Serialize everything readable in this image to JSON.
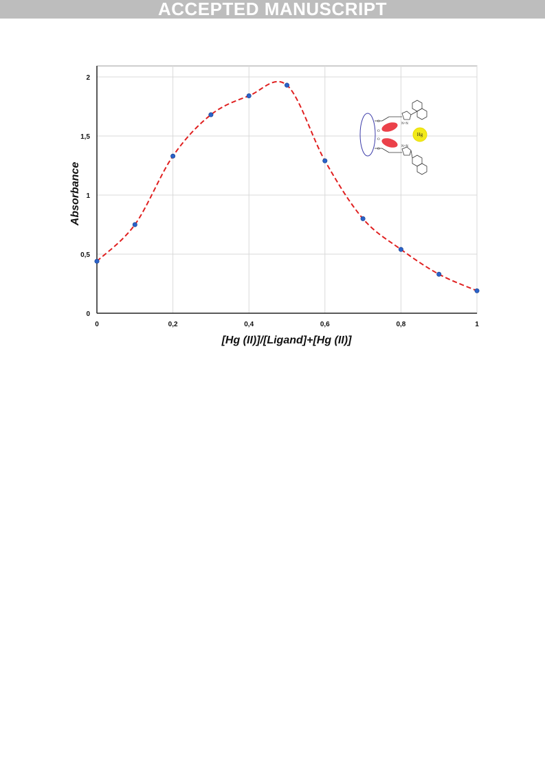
{
  "banner": {
    "text": "ACCEPTED MANUSCRIPT"
  },
  "colors": {
    "line": "#e02020",
    "marker": "#2a62c9",
    "grid": "#d9d9d9",
    "banner_bg": "#bdbdbd",
    "hg_circle": "#f2ea1a",
    "ellipse": "#e8202a",
    "macrocycle": "#3a3aa8"
  },
  "chart_data": {
    "type": "scatter",
    "title": "",
    "xlabel": "[Hg (II)]/[Ligand]+[Hg (II)]",
    "ylabel": "Absorbance",
    "xlim": [
      0,
      1
    ],
    "ylim": [
      0,
      2.1
    ],
    "x_ticks": [
      "0",
      "0,2",
      "0,4",
      "0,6",
      "0,8",
      "1"
    ],
    "y_ticks": [
      "0",
      "0,5",
      "1",
      "1,5",
      "2"
    ],
    "grid": true,
    "line_style": "dashed smooth curve",
    "x": [
      0,
      0.1,
      0.2,
      0.3,
      0.4,
      0.5,
      0.6,
      0.7,
      0.8,
      0.9,
      1.0
    ],
    "y": [
      0.44,
      0.75,
      1.33,
      1.68,
      1.84,
      1.93,
      1.29,
      0.8,
      0.54,
      0.33,
      0.19
    ],
    "inset": {
      "hg_label": "Hg",
      "n_labels": [
        "N=N",
        "N=N"
      ],
      "o_labels": [
        "O",
        "O",
        "O",
        "O"
      ]
    }
  }
}
